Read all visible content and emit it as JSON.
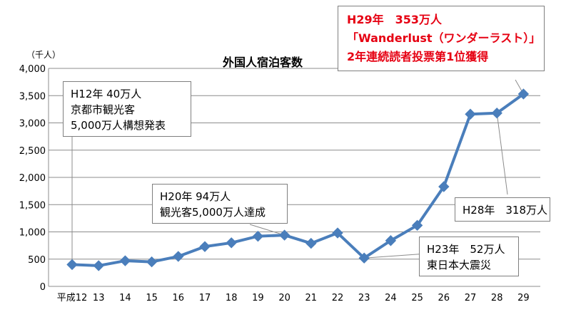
{
  "chart_data": {
    "type": "line",
    "title": "外国人宿泊客数",
    "y_unit_label": "（千人）",
    "xlabel": "",
    "ylabel": "",
    "categories": [
      "平成12",
      "13",
      "14",
      "15",
      "16",
      "17",
      "18",
      "19",
      "20",
      "21",
      "22",
      "23",
      "24",
      "25",
      "26",
      "27",
      "28",
      "29"
    ],
    "series": [
      {
        "values": [
          400,
          380,
          470,
          450,
          550,
          730,
          800,
          920,
          940,
          790,
          980,
          520,
          840,
          1120,
          1830,
          3160,
          3180,
          3530
        ]
      }
    ],
    "ylim": [
      0,
      4000
    ],
    "yticks": [
      0,
      500,
      1000,
      1500,
      2000,
      2500,
      3000,
      3500,
      4000
    ],
    "ytick_labels": [
      "0",
      "500",
      "1,000",
      "1,500",
      "2,000",
      "2,500",
      "3,000",
      "3,500",
      "4,000"
    ],
    "grid": true,
    "legend": "none",
    "line_color": "#4a7ebb",
    "marker_color": "#4a7ebb",
    "annotations": [
      {
        "id": "h12",
        "category_index": 0,
        "lines": [
          "H12年 40万人",
          "京都市観光客",
          "5,000万人構想発表"
        ]
      },
      {
        "id": "h20",
        "category_index": 8,
        "lines": [
          "H20年 94万人",
          "観光客5,000万人達成"
        ]
      },
      {
        "id": "h23",
        "category_index": 11,
        "lines": [
          "H23年　52万人",
          "東日本大震災"
        ]
      },
      {
        "id": "h28",
        "category_index": 16,
        "lines": [
          "H28年　318万人"
        ]
      },
      {
        "id": "h29",
        "category_index": 17,
        "color": "#e60012",
        "lines": [
          "H29年　353万人",
          "「Wanderlust（ワンダーラスト）」",
          "2年連続読者投票第1位獲得"
        ]
      }
    ]
  }
}
